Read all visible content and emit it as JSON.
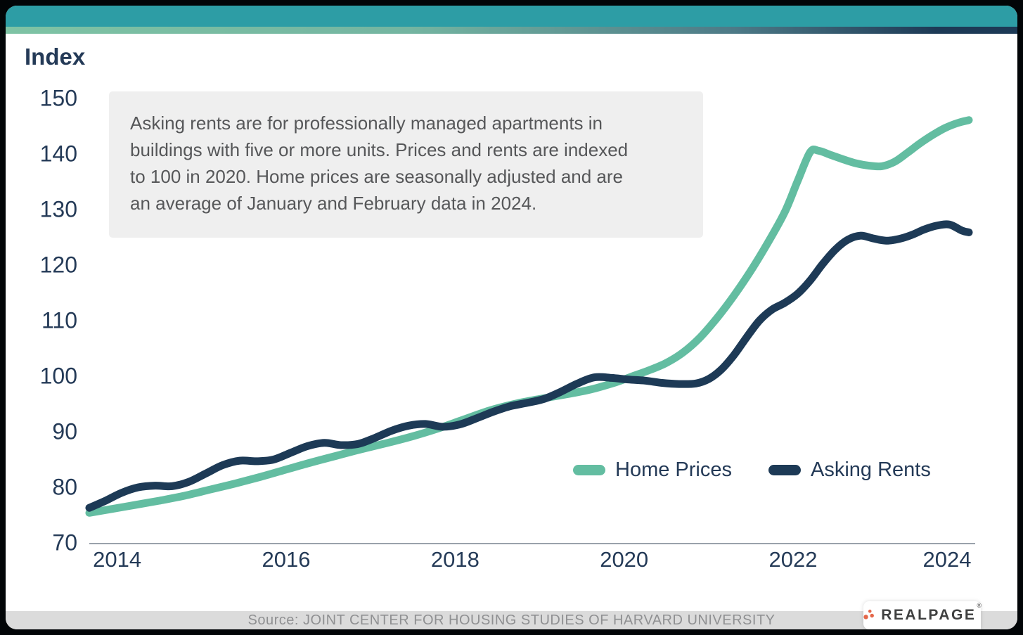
{
  "page": {
    "source_text": "Source: JOINT CENTER FOR HOUSING STUDIES OF HARVARD UNIVERSITY",
    "brand": {
      "name": "REALPAGE",
      "reg_mark": "®"
    },
    "colors": {
      "top_bar_teal": "#2d9da5",
      "accent_green": "#6ec0a2",
      "navy": "#1d3a56",
      "note_bg": "#efefef",
      "source_bar_bg": "#dbdbdb",
      "logo_orange": "#e4674a",
      "axis_line_gray": "#9aa2ab"
    }
  },
  "chart_data": {
    "type": "line",
    "title": "Index",
    "note": "Asking rents are for professionally managed apartments in\nbuildings with five or more units. Prices and rents are indexed\nto 100 in 2020. Home prices are seasonally adjusted and are\nan average of January and February data in 2024.",
    "xlim": [
      2013.67,
      2024.08
    ],
    "ylim": [
      70,
      150
    ],
    "x_ticks": [
      2014,
      2016,
      2018,
      2020,
      2022,
      2024
    ],
    "y_ticks": [
      70,
      80,
      90,
      100,
      110,
      120,
      130,
      140,
      150
    ],
    "grid": false,
    "legend_position": "inside-bottom-right",
    "series": [
      {
        "name": "Home Prices",
        "color": "#63bda1",
        "points": [
          [
            2013.67,
            75.4
          ],
          [
            2013.9,
            76.0
          ],
          [
            2014.2,
            76.8
          ],
          [
            2014.5,
            77.6
          ],
          [
            2014.8,
            78.5
          ],
          [
            2015.1,
            79.6
          ],
          [
            2015.4,
            80.7
          ],
          [
            2015.7,
            81.9
          ],
          [
            2016.0,
            83.2
          ],
          [
            2016.3,
            84.5
          ],
          [
            2016.6,
            85.7
          ],
          [
            2016.9,
            86.9
          ],
          [
            2017.2,
            88.0
          ],
          [
            2017.5,
            89.2
          ],
          [
            2017.8,
            90.6
          ],
          [
            2018.1,
            92.2
          ],
          [
            2018.4,
            93.8
          ],
          [
            2018.7,
            95.0
          ],
          [
            2019.0,
            95.9
          ],
          [
            2019.3,
            96.7
          ],
          [
            2019.6,
            97.6
          ],
          [
            2019.9,
            98.9
          ],
          [
            2020.1,
            100.0
          ],
          [
            2020.3,
            101.1
          ],
          [
            2020.5,
            102.4
          ],
          [
            2020.7,
            104.3
          ],
          [
            2020.9,
            107.0
          ],
          [
            2021.1,
            110.5
          ],
          [
            2021.3,
            114.5
          ],
          [
            2021.5,
            119.0
          ],
          [
            2021.7,
            124.0
          ],
          [
            2021.9,
            129.5
          ],
          [
            2022.05,
            135.0
          ],
          [
            2022.2,
            140.3
          ],
          [
            2022.3,
            140.6
          ],
          [
            2022.45,
            139.8
          ],
          [
            2022.6,
            139.0
          ],
          [
            2022.75,
            138.3
          ],
          [
            2022.9,
            137.9
          ],
          [
            2023.05,
            137.8
          ],
          [
            2023.2,
            138.6
          ],
          [
            2023.35,
            140.2
          ],
          [
            2023.5,
            141.9
          ],
          [
            2023.65,
            143.4
          ],
          [
            2023.8,
            144.7
          ],
          [
            2023.95,
            145.6
          ],
          [
            2024.08,
            146.1
          ]
        ]
      },
      {
        "name": "Asking Rents",
        "color": "#1d3a56",
        "points": [
          [
            2013.67,
            76.3
          ],
          [
            2013.85,
            77.5
          ],
          [
            2014.05,
            79.0
          ],
          [
            2014.25,
            80.0
          ],
          [
            2014.45,
            80.3
          ],
          [
            2014.65,
            80.2
          ],
          [
            2014.85,
            81.0
          ],
          [
            2015.05,
            82.5
          ],
          [
            2015.25,
            84.0
          ],
          [
            2015.45,
            84.8
          ],
          [
            2015.65,
            84.7
          ],
          [
            2015.85,
            85.0
          ],
          [
            2016.05,
            86.2
          ],
          [
            2016.25,
            87.4
          ],
          [
            2016.45,
            88.0
          ],
          [
            2016.65,
            87.6
          ],
          [
            2016.85,
            87.8
          ],
          [
            2017.05,
            88.9
          ],
          [
            2017.25,
            90.2
          ],
          [
            2017.45,
            91.1
          ],
          [
            2017.65,
            91.4
          ],
          [
            2017.85,
            90.9
          ],
          [
            2018.05,
            91.3
          ],
          [
            2018.25,
            92.4
          ],
          [
            2018.45,
            93.6
          ],
          [
            2018.65,
            94.6
          ],
          [
            2018.85,
            95.2
          ],
          [
            2019.05,
            95.9
          ],
          [
            2019.25,
            97.2
          ],
          [
            2019.45,
            98.7
          ],
          [
            2019.65,
            99.8
          ],
          [
            2019.85,
            99.7
          ],
          [
            2020.05,
            99.4
          ],
          [
            2020.25,
            99.2
          ],
          [
            2020.45,
            98.8
          ],
          [
            2020.65,
            98.6
          ],
          [
            2020.85,
            98.7
          ],
          [
            2021.0,
            99.5
          ],
          [
            2021.15,
            101.2
          ],
          [
            2021.3,
            103.8
          ],
          [
            2021.45,
            107.0
          ],
          [
            2021.6,
            110.0
          ],
          [
            2021.75,
            112.0
          ],
          [
            2021.9,
            113.2
          ],
          [
            2022.05,
            114.8
          ],
          [
            2022.2,
            117.2
          ],
          [
            2022.35,
            120.2
          ],
          [
            2022.5,
            122.8
          ],
          [
            2022.65,
            124.6
          ],
          [
            2022.8,
            125.3
          ],
          [
            2022.95,
            124.8
          ],
          [
            2023.1,
            124.4
          ],
          [
            2023.25,
            124.7
          ],
          [
            2023.4,
            125.4
          ],
          [
            2023.55,
            126.4
          ],
          [
            2023.7,
            127.1
          ],
          [
            2023.85,
            127.3
          ],
          [
            2024.0,
            126.2
          ],
          [
            2024.08,
            125.9
          ]
        ]
      }
    ]
  }
}
